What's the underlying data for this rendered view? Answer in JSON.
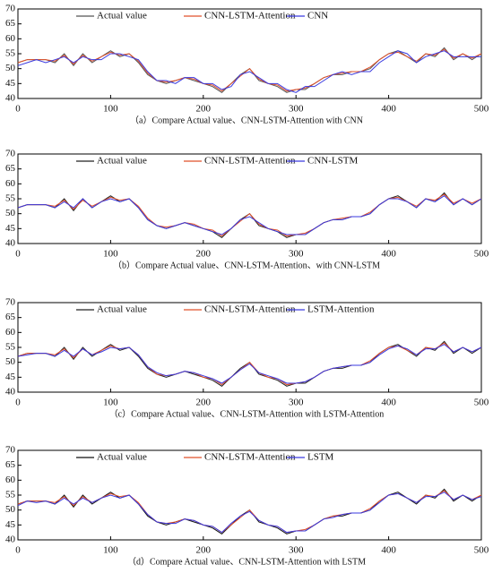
{
  "chart_data": [
    {
      "type": "line",
      "caption": "（a）Compare  Actual value、CNN-LSTM-Attention with CNN",
      "x": [
        0,
        10,
        20,
        30,
        40,
        50,
        60,
        70,
        80,
        90,
        100,
        110,
        120,
        130,
        140,
        150,
        160,
        170,
        180,
        190,
        200,
        210,
        220,
        230,
        240,
        250,
        260,
        270,
        280,
        290,
        300,
        310,
        320,
        330,
        340,
        350,
        360,
        370,
        380,
        390,
        400,
        410,
        420,
        430,
        440,
        450,
        460,
        470,
        480,
        490,
        500
      ],
      "xlim": [
        0,
        500
      ],
      "xticks": [
        0,
        100,
        200,
        300,
        400,
        500
      ],
      "ylim": [
        40,
        70
      ],
      "yticks": [
        40,
        45,
        50,
        55,
        60,
        65,
        70
      ],
      "series": [
        {
          "name": "Actual value",
          "color": "#555555",
          "values": [
            52,
            53,
            53,
            53,
            52,
            55,
            51,
            55,
            52,
            54,
            56,
            54,
            55,
            52,
            48,
            46,
            45,
            46,
            47,
            46,
            45,
            44,
            42,
            45,
            48,
            50,
            46,
            45,
            44,
            42,
            43,
            43,
            45,
            47,
            48,
            48,
            49,
            49,
            50,
            53,
            55,
            56,
            54,
            52,
            55,
            54,
            57,
            53,
            55,
            53,
            55
          ]
        },
        {
          "name": "CNN-LSTM-Attention",
          "color": "#e0502a",
          "values": [
            52,
            53,
            53,
            53,
            52.5,
            54.5,
            51.5,
            54.5,
            52.5,
            54,
            55.5,
            54.5,
            55,
            52.5,
            48.5,
            46,
            45.5,
            46,
            47,
            46.5,
            45,
            44.5,
            42.5,
            45,
            47.5,
            50,
            46.5,
            45,
            44.5,
            42.5,
            43,
            43.5,
            45,
            47,
            48,
            48.5,
            49,
            49,
            50.5,
            53,
            55,
            55.5,
            54,
            52.5,
            55,
            54.5,
            56.5,
            53.5,
            55,
            53.5,
            55
          ]
        },
        {
          "name": "CNN",
          "color": "#3a3ae0",
          "values": [
            51,
            52,
            53,
            52,
            53,
            54,
            52,
            54,
            53,
            53,
            55,
            55,
            54,
            53,
            49,
            46,
            46,
            45,
            47,
            47,
            45,
            45,
            43,
            44,
            48,
            49,
            47,
            45,
            45,
            43,
            42,
            44,
            44,
            46,
            48,
            49,
            48,
            49,
            49,
            52,
            54,
            56,
            55,
            52,
            54,
            55,
            56,
            54,
            54,
            54,
            54
          ]
        }
      ]
    },
    {
      "type": "line",
      "caption": "（b）Compare Actual value、CNN-LSTM-Attention、with CNN-LSTM",
      "x": [
        0,
        10,
        20,
        30,
        40,
        50,
        60,
        70,
        80,
        90,
        100,
        110,
        120,
        130,
        140,
        150,
        160,
        170,
        180,
        190,
        200,
        210,
        220,
        230,
        240,
        250,
        260,
        270,
        280,
        290,
        300,
        310,
        320,
        330,
        340,
        350,
        360,
        370,
        380,
        390,
        400,
        410,
        420,
        430,
        440,
        450,
        460,
        470,
        480,
        490,
        500
      ],
      "xlim": [
        0,
        500
      ],
      "xticks": [
        0,
        100,
        200,
        300,
        400,
        500
      ],
      "ylim": [
        40,
        70
      ],
      "yticks": [
        40,
        45,
        50,
        55,
        60,
        65,
        70
      ],
      "series": [
        {
          "name": "Actual value",
          "color": "#222222",
          "values": [
            52,
            53,
            53,
            53,
            52,
            55,
            51,
            55,
            52,
            54,
            56,
            54,
            55,
            52,
            48,
            46,
            45,
            46,
            47,
            46,
            45,
            44,
            42,
            45,
            48,
            50,
            46,
            45,
            44,
            42,
            43,
            43,
            45,
            47,
            48,
            48,
            49,
            49,
            50,
            53,
            55,
            56,
            54,
            52,
            55,
            54,
            57,
            53,
            55,
            53,
            55
          ]
        },
        {
          "name": "CNN-LSTM-Attention",
          "color": "#e0502a",
          "values": [
            52,
            53,
            53,
            53,
            52.5,
            54.5,
            51.5,
            54.5,
            52.5,
            54,
            55.5,
            54.5,
            55,
            52.5,
            48.5,
            46,
            45.5,
            46,
            47,
            46.5,
            45,
            44.5,
            42.5,
            45,
            47.5,
            50,
            46.5,
            45,
            44.5,
            42.5,
            43,
            43.5,
            45,
            47,
            48,
            48.5,
            49,
            49,
            50.5,
            53,
            55,
            55.5,
            54,
            52.5,
            55,
            54.5,
            56.5,
            53.5,
            55,
            53.5,
            55
          ]
        },
        {
          "name": "CNN-LSTM",
          "color": "#3a3ae0",
          "values": [
            52,
            53,
            53,
            53,
            52,
            54,
            52,
            55,
            52,
            54,
            55,
            54,
            55,
            52,
            48,
            46,
            45,
            46,
            47,
            46,
            45,
            44,
            43,
            45,
            48,
            49,
            47,
            45,
            44,
            43,
            43,
            43,
            45,
            47,
            48,
            48,
            49,
            49,
            50,
            53,
            55,
            55,
            54,
            52,
            55,
            54,
            56,
            53,
            55,
            53,
            55
          ]
        }
      ]
    },
    {
      "type": "line",
      "caption": "（c）Compare Actual value、CNN-LSTM-Attention with LSTM-Attention",
      "x": [
        0,
        10,
        20,
        30,
        40,
        50,
        60,
        70,
        80,
        90,
        100,
        110,
        120,
        130,
        140,
        150,
        160,
        170,
        180,
        190,
        200,
        210,
        220,
        230,
        240,
        250,
        260,
        270,
        280,
        290,
        300,
        310,
        320,
        330,
        340,
        350,
        360,
        370,
        380,
        390,
        400,
        410,
        420,
        430,
        440,
        450,
        460,
        470,
        480,
        490,
        500
      ],
      "xlim": [
        0,
        500
      ],
      "xticks": [
        0,
        100,
        200,
        300,
        400,
        500
      ],
      "ylim": [
        40,
        70
      ],
      "yticks": [
        40,
        45,
        50,
        55,
        60,
        65,
        70
      ],
      "series": [
        {
          "name": "Actual value",
          "color": "#222222",
          "values": [
            52,
            53,
            53,
            53,
            52,
            55,
            51,
            55,
            52,
            54,
            56,
            54,
            55,
            52,
            48,
            46,
            45,
            46,
            47,
            46,
            45,
            44,
            42,
            45,
            48,
            50,
            46,
            45,
            44,
            42,
            43,
            43,
            45,
            47,
            48,
            48,
            49,
            49,
            50,
            53,
            55,
            56,
            54,
            52,
            55,
            54,
            57,
            53,
            55,
            53,
            55
          ]
        },
        {
          "name": "CNN-LSTM-Attention",
          "color": "#e0502a",
          "values": [
            52,
            53,
            53,
            53,
            52.5,
            54.5,
            51.5,
            54.5,
            52.5,
            54,
            55.5,
            54.5,
            55,
            52.5,
            48.5,
            46,
            45.5,
            46,
            47,
            46.5,
            45,
            44.5,
            42.5,
            45,
            47.5,
            50,
            46.5,
            45,
            44.5,
            42.5,
            43,
            43.5,
            45,
            47,
            48,
            48.5,
            49,
            49,
            50.5,
            53,
            55,
            55.5,
            54,
            52.5,
            55,
            54.5,
            56.5,
            53.5,
            55,
            53.5,
            55
          ]
        },
        {
          "name": "LSTM-Attention",
          "color": "#3a3ae0",
          "values": [
            52,
            52.5,
            53,
            53,
            52,
            54,
            52,
            54.5,
            52.5,
            53.5,
            55,
            54.5,
            55,
            52.5,
            48.5,
            46.5,
            45.5,
            46,
            47,
            46.5,
            45.5,
            44.5,
            43,
            45,
            47.5,
            49.5,
            46.5,
            45.5,
            44.5,
            43,
            43,
            43.5,
            45,
            47,
            48,
            48.5,
            49,
            49,
            50,
            52.5,
            54.5,
            55.5,
            54.5,
            52.5,
            54.5,
            54.5,
            56,
            53.5,
            55,
            53.5,
            55
          ]
        }
      ]
    },
    {
      "type": "line",
      "caption": "（d）Compare Actual value、CNN-LSTM-Attention with LSTM",
      "x": [
        0,
        10,
        20,
        30,
        40,
        50,
        60,
        70,
        80,
        90,
        100,
        110,
        120,
        130,
        140,
        150,
        160,
        170,
        180,
        190,
        200,
        210,
        220,
        230,
        240,
        250,
        260,
        270,
        280,
        290,
        300,
        310,
        320,
        330,
        340,
        350,
        360,
        370,
        380,
        390,
        400,
        410,
        420,
        430,
        440,
        450,
        460,
        470,
        480,
        490,
        500
      ],
      "xlim": [
        0,
        500
      ],
      "xticks": [
        0,
        100,
        200,
        300,
        400,
        500
      ],
      "ylim": [
        40,
        70
      ],
      "yticks": [
        40,
        45,
        50,
        55,
        60,
        65,
        70
      ],
      "series": [
        {
          "name": "Actual value",
          "color": "#111111",
          "values": [
            52,
            53,
            53,
            53,
            52,
            55,
            51,
            55,
            52,
            54,
            56,
            54,
            55,
            52,
            48,
            46,
            45,
            46,
            47,
            46,
            45,
            44,
            42,
            45,
            48,
            50,
            46,
            45,
            44,
            42,
            43,
            43,
            45,
            47,
            48,
            48,
            49,
            49,
            50,
            53,
            55,
            56,
            54,
            52,
            55,
            54,
            57,
            53,
            55,
            53,
            55
          ]
        },
        {
          "name": "CNN-LSTM-Attention",
          "color": "#e0502a",
          "values": [
            52,
            53,
            53,
            53,
            52.5,
            54.5,
            51.5,
            54.5,
            52.5,
            54,
            55.5,
            54.5,
            55,
            52.5,
            48.5,
            46,
            45.5,
            46,
            47,
            46.5,
            45,
            44.5,
            42.5,
            45,
            47.5,
            50,
            46.5,
            45,
            44.5,
            42.5,
            43,
            43.5,
            45,
            47,
            48,
            48.5,
            49,
            49,
            50.5,
            53,
            55,
            55.5,
            54,
            52.5,
            55,
            54.5,
            56.5,
            53.5,
            55,
            53.5,
            55
          ]
        },
        {
          "name": "LSTM",
          "color": "#3a3ae0",
          "values": [
            51.5,
            53,
            52.5,
            53,
            52,
            54,
            52,
            54,
            52.5,
            54,
            55,
            54,
            55,
            52,
            48.5,
            46,
            45.5,
            45.5,
            47,
            46.5,
            45,
            44.5,
            42.5,
            45.5,
            48,
            49.5,
            46.5,
            45,
            44.5,
            42.5,
            43,
            43,
            45,
            47,
            47.5,
            48.5,
            49,
            49,
            50,
            52.5,
            55,
            55.5,
            54,
            52.5,
            54.5,
            54.5,
            56,
            53.5,
            55,
            53.5,
            54.5
          ]
        }
      ]
    }
  ]
}
